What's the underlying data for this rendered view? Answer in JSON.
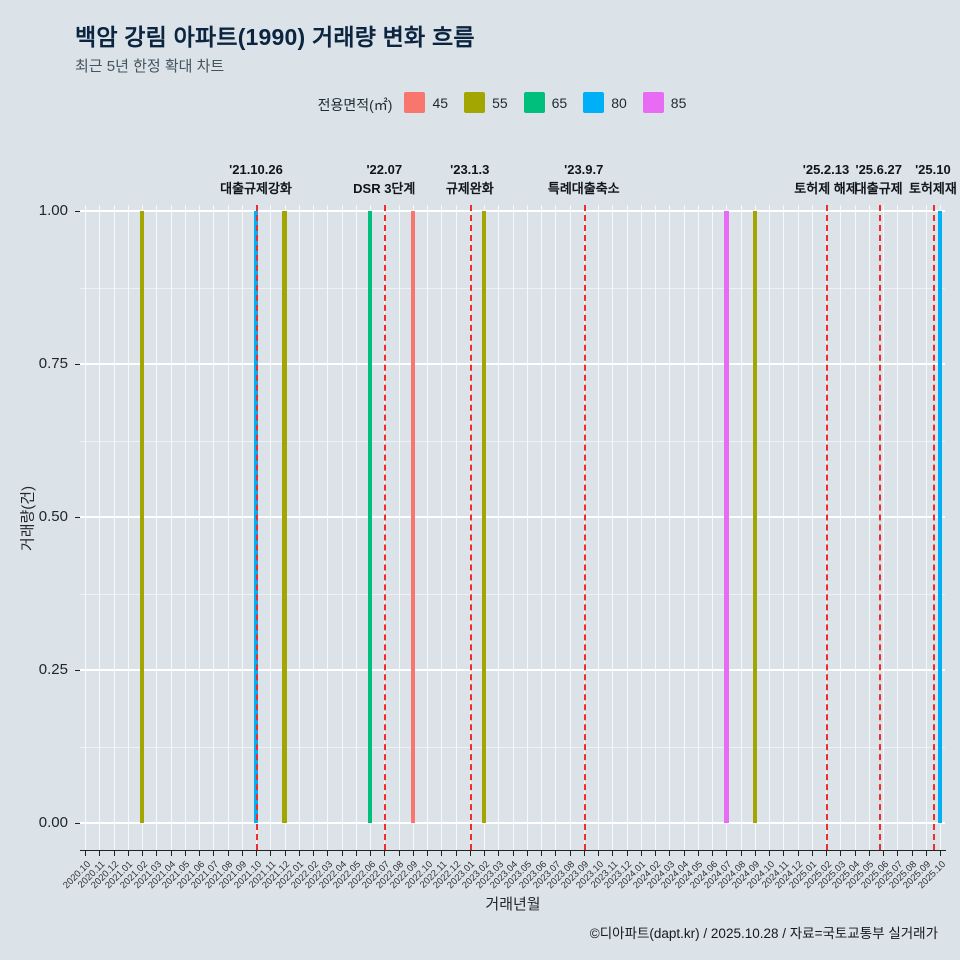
{
  "title": "백암 강림 아파트(1990) 거래량 변화 흐름",
  "subtitle": "최근 5년 한정 확대 차트",
  "legend": {
    "label": "전용면적(㎡)",
    "items": [
      {
        "label": "45",
        "color": "#F8766D"
      },
      {
        "label": "55",
        "color": "#A3A500"
      },
      {
        "label": "65",
        "color": "#00BF7D"
      },
      {
        "label": "80",
        "color": "#00B0F6"
      },
      {
        "label": "85",
        "color": "#E76BF3"
      }
    ]
  },
  "chart_data": {
    "type": "bar",
    "title": "백암 강림 아파트(1990) 거래량 변화 흐름",
    "xlabel": "거래년월",
    "ylabel": "거래량(건)",
    "ylim": [
      0,
      1
    ],
    "yticks": [
      {
        "v": 0.0,
        "label": "0.00"
      },
      {
        "v": 0.25,
        "label": "0.25"
      },
      {
        "v": 0.5,
        "label": "0.50"
      },
      {
        "v": 0.75,
        "label": "0.75"
      },
      {
        "v": 1.0,
        "label": "1.00"
      }
    ],
    "x": [
      "2020.10",
      "2020.11",
      "2020.12",
      "2021.01",
      "2021.02",
      "2021.03",
      "2021.04",
      "2021.05",
      "2021.06",
      "2021.07",
      "2021.08",
      "2021.09",
      "2021.10",
      "2021.11",
      "2021.12",
      "2022.01",
      "2022.02",
      "2022.03",
      "2022.04",
      "2022.05",
      "2022.06",
      "2022.07",
      "2022.08",
      "2022.09",
      "2022.10",
      "2022.11",
      "2022.12",
      "2023.01",
      "2023.02",
      "2023.03",
      "2023.04",
      "2023.05",
      "2023.06",
      "2023.07",
      "2023.08",
      "2023.09",
      "2023.10",
      "2023.11",
      "2023.12",
      "2024.01",
      "2024.02",
      "2024.03",
      "2024.04",
      "2024.05",
      "2024.06",
      "2024.07",
      "2024.08",
      "2024.09",
      "2024.10",
      "2024.11",
      "2024.12",
      "2025.01",
      "2025.02",
      "2025.03",
      "2025.04",
      "2025.05",
      "2025.06",
      "2025.07",
      "2025.08",
      "2025.09",
      "2025.10"
    ],
    "series": [
      {
        "name": "45",
        "color": "#F8766D",
        "points": [
          {
            "x": "2022.09",
            "y": 1
          }
        ]
      },
      {
        "name": "55",
        "color": "#A3A500",
        "points": [
          {
            "x": "2021.02",
            "y": 1
          },
          {
            "x": "2021.12",
            "y": 1
          },
          {
            "x": "2023.02",
            "y": 1
          },
          {
            "x": "2024.09",
            "y": 1
          }
        ]
      },
      {
        "name": "65",
        "color": "#00BF7D",
        "points": [
          {
            "x": "2022.06",
            "y": 1
          }
        ]
      },
      {
        "name": "80",
        "color": "#00B0F6",
        "points": [
          {
            "x": "2021.10",
            "y": 1
          },
          {
            "x": "2025.10",
            "y": 1
          }
        ]
      },
      {
        "name": "85",
        "color": "#E76BF3",
        "points": [
          {
            "x": "2024.07",
            "y": 1
          }
        ]
      }
    ],
    "events": [
      {
        "x": "2021.10",
        "date": "'21.10.26",
        "label": "대출규제강화",
        "offset": 0
      },
      {
        "x": "2022.07",
        "date": "'22.07",
        "label": "DSR 3단계",
        "offset": 0
      },
      {
        "x": "2023.01",
        "date": "'23.1.3",
        "label": "규제완화",
        "offset": 0
      },
      {
        "x": "2023.09",
        "date": "'23.9.7",
        "label": "특례대출축소",
        "offset": 0
      },
      {
        "x": "2025.02",
        "date": "'25.2.13",
        "label": "토허제 해제",
        "offset": 0
      },
      {
        "x": "2025.06",
        "date": "'25.6.27",
        "label": "대출규제",
        "offset": -0.3
      },
      {
        "x": "2025.10",
        "date": "'25.10",
        "label": "토허제재",
        "offset": -0.5
      }
    ],
    "event_line_color": "#f02d2d",
    "grid": true,
    "legend_position": "top"
  },
  "footer": "©디아파트(dapt.kr) / 2025.10.28 / 자료=국토교통부 실거래가"
}
